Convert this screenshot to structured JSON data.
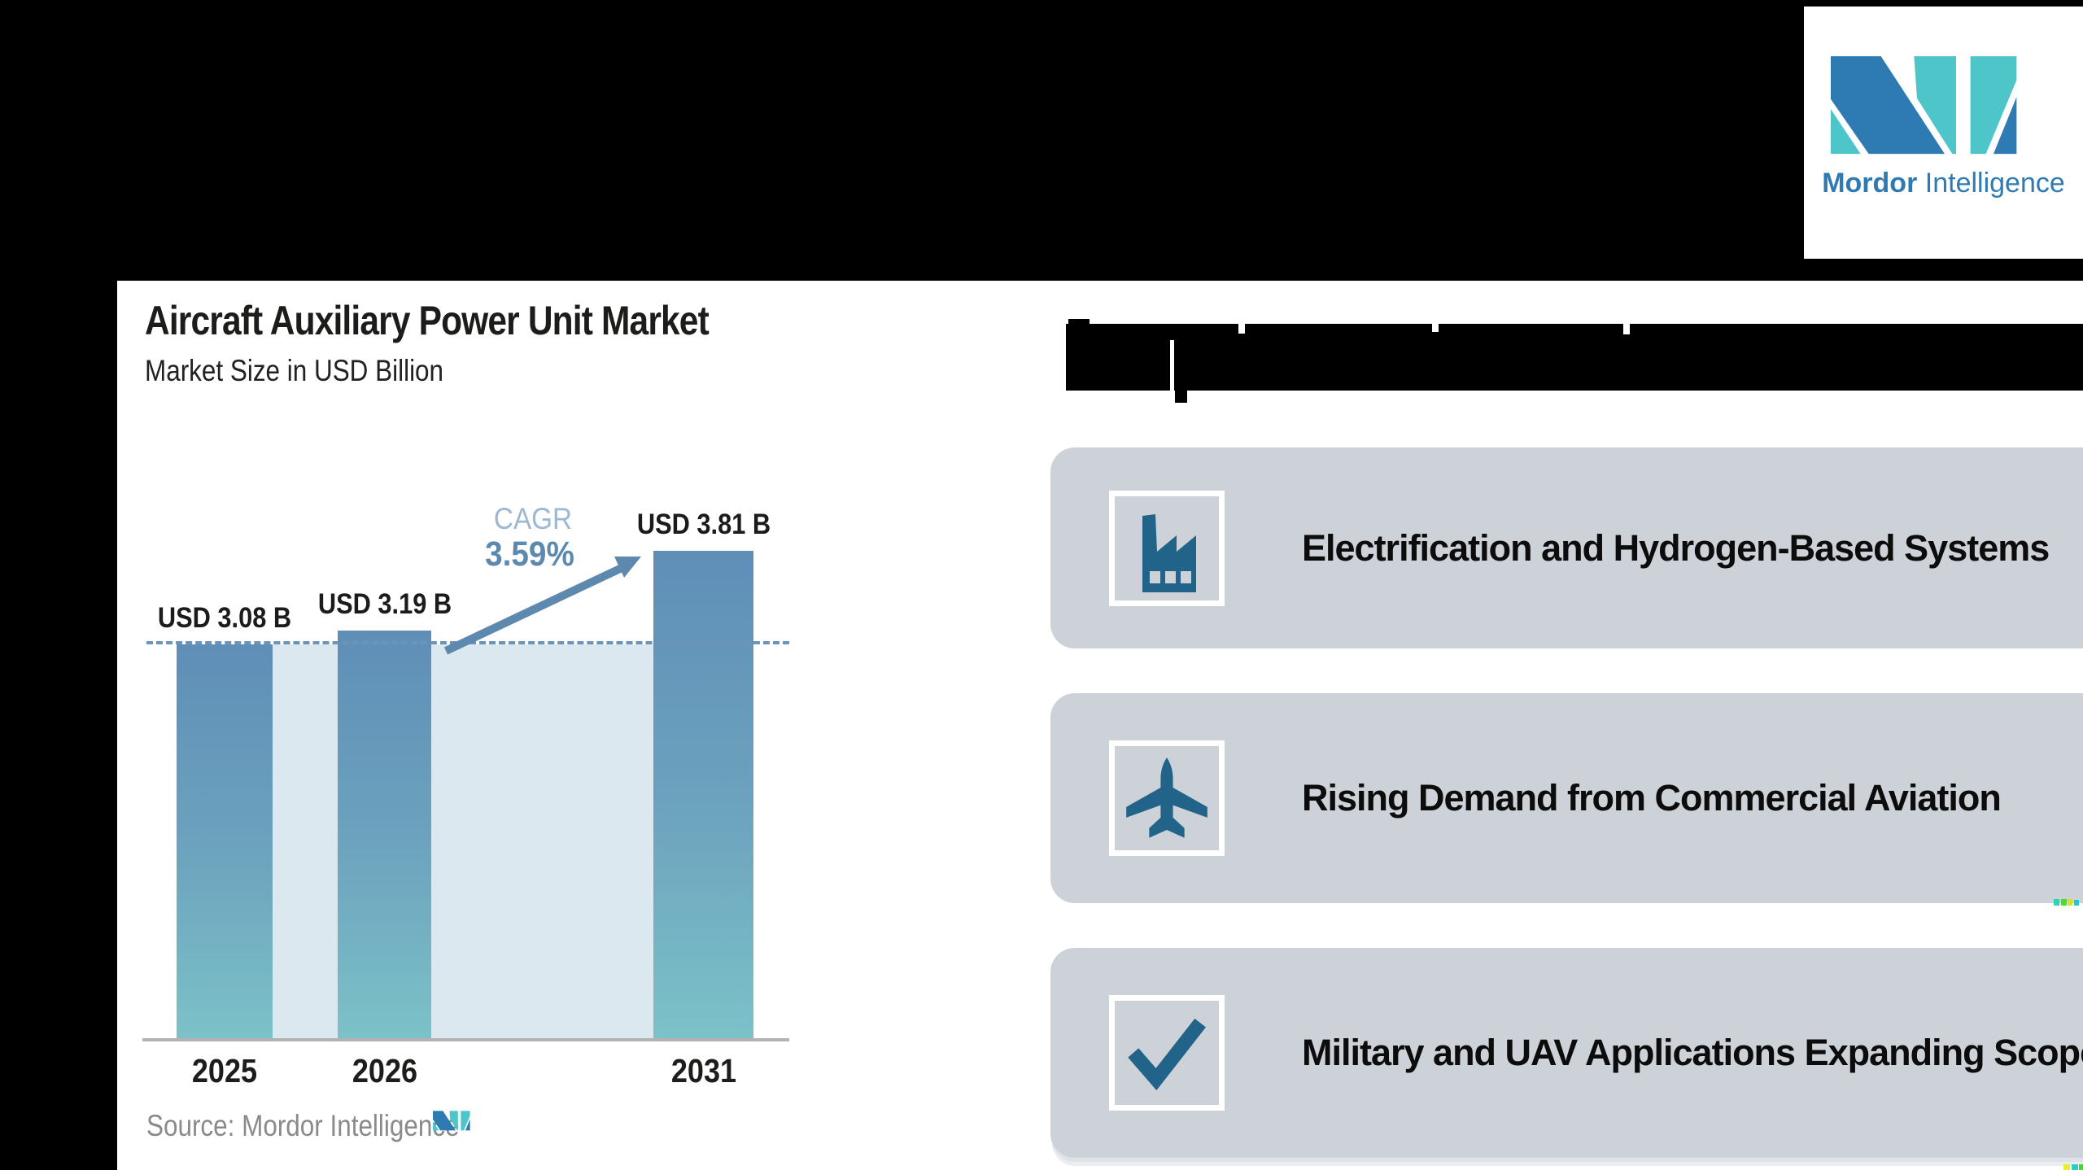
{
  "brand": {
    "name_bold": "Mordor",
    "name_light": "Intelligence",
    "blue": "#2e7bb4",
    "teal": "#4ec5c9"
  },
  "chart_data": {
    "type": "bar",
    "title": "Aircraft Auxiliary Power Unit Market",
    "subtitle": "Market Size in USD Billion",
    "categories": [
      "2025",
      "2026",
      "2031"
    ],
    "values": [
      3.08,
      3.19,
      3.81
    ],
    "value_labels": [
      "USD 3.08 B",
      "USD 3.19 B",
      "USD 3.81 B"
    ],
    "cagr_label": "CAGR",
    "cagr_value": "3.59%",
    "source": "Source: Mordor Intelligence",
    "ylim": [
      0,
      4.2
    ],
    "reference_line_value": 3.08,
    "grid": false,
    "bar_color_top": "#5f8eb7",
    "bar_color_bottom": "#7cc2c8",
    "reference_line_color": "#6b94b8",
    "plot_band_color": "#dce8f0"
  },
  "key_points": {
    "card_color": "#cdd2d9",
    "icon_color": "#226389",
    "items": [
      {
        "icon": "factory-icon",
        "label": "Electrification and Hydrogen-Based Systems"
      },
      {
        "icon": "airplane-icon",
        "label": "Rising Demand from Commercial Aviation"
      },
      {
        "icon": "checkmark-icon",
        "label": "Military and UAV Applications Expanding Scope"
      }
    ]
  }
}
